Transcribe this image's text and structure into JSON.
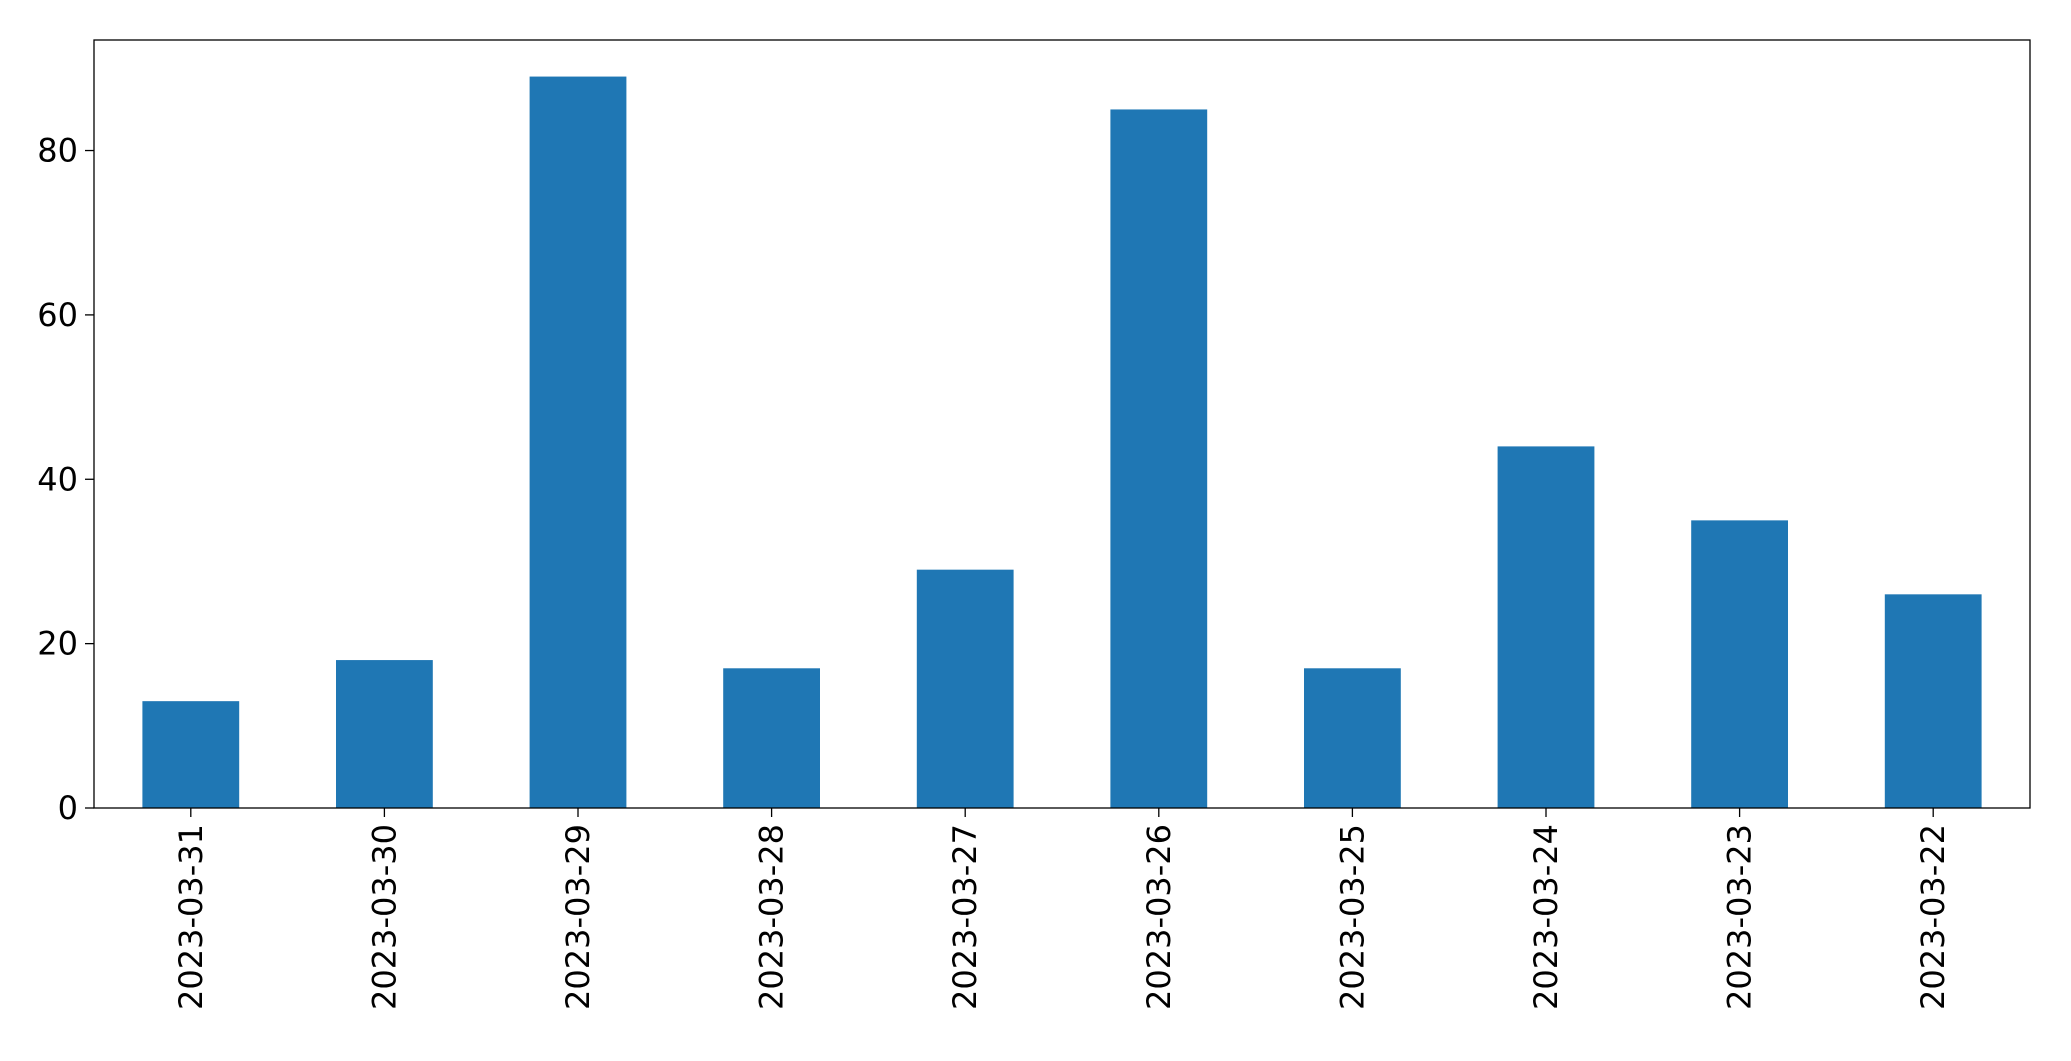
{
  "chart_data": {
    "type": "bar",
    "categories": [
      "2023-03-31",
      "2023-03-30",
      "2023-03-29",
      "2023-03-28",
      "2023-03-27",
      "2023-03-26",
      "2023-03-25",
      "2023-03-24",
      "2023-03-23",
      "2023-03-22"
    ],
    "values": [
      13,
      18,
      89,
      17,
      29,
      85,
      17,
      44,
      35,
      26
    ],
    "color": "#1f77b4",
    "ylim": [
      0,
      93.45
    ],
    "yticks": [
      0,
      20,
      40,
      60,
      80
    ],
    "grid": false
  }
}
